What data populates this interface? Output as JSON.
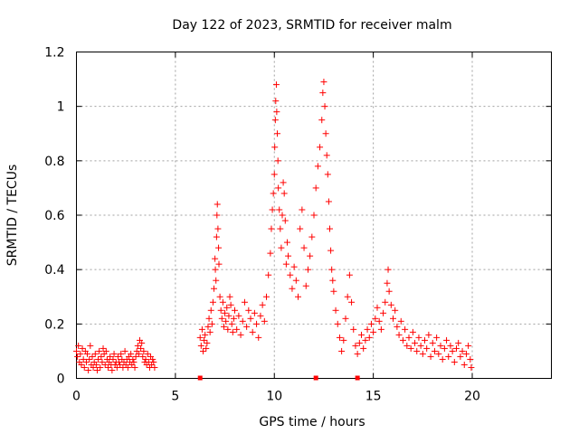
{
  "chart_data": {
    "type": "scatter",
    "title": "Day 122 of 2023, SRMTID for receiver malm",
    "xlabel": "GPS time / hours",
    "ylabel": "SRMTID / TECUs",
    "xlim": [
      0,
      24
    ],
    "ylim": [
      0,
      1.2
    ],
    "xticks": [
      0,
      5,
      10,
      15,
      20
    ],
    "xtick_labels": [
      "0",
      "5",
      "10",
      "15",
      "20"
    ],
    "yticks": [
      0,
      0.2,
      0.4,
      0.6,
      0.8,
      1.0,
      1.2
    ],
    "ytick_labels": [
      "0",
      "0.2",
      "0.4",
      "0.6",
      "0.8",
      "1",
      "1.2"
    ],
    "grid": true,
    "marker": "+",
    "color": "#ff0000",
    "series": [
      {
        "name": "SRMTID",
        "points": [
          [
            0.0,
            0.1
          ],
          [
            0.05,
            0.08
          ],
          [
            0.1,
            0.12
          ],
          [
            0.15,
            0.06
          ],
          [
            0.2,
            0.09
          ],
          [
            0.25,
            0.05
          ],
          [
            0.3,
            0.11
          ],
          [
            0.35,
            0.07
          ],
          [
            0.4,
            0.04
          ],
          [
            0.45,
            0.1
          ],
          [
            0.5,
            0.06
          ],
          [
            0.55,
            0.09
          ],
          [
            0.6,
            0.03
          ],
          [
            0.65,
            0.07
          ],
          [
            0.7,
            0.12
          ],
          [
            0.75,
            0.05
          ],
          [
            0.8,
            0.08
          ],
          [
            0.85,
            0.04
          ],
          [
            0.9,
            0.06
          ],
          [
            0.95,
            0.09
          ],
          [
            1.0,
            0.05
          ],
          [
            1.05,
            0.03
          ],
          [
            1.1,
            0.07
          ],
          [
            1.15,
            0.1
          ],
          [
            1.2,
            0.04
          ],
          [
            1.25,
            0.08
          ],
          [
            1.3,
            0.06
          ],
          [
            1.35,
            0.11
          ],
          [
            1.4,
            0.09
          ],
          [
            1.45,
            0.05
          ],
          [
            1.5,
            0.1
          ],
          [
            1.55,
            0.07
          ],
          [
            1.6,
            0.04
          ],
          [
            1.65,
            0.06
          ],
          [
            1.7,
            0.08
          ],
          [
            1.75,
            0.05
          ],
          [
            1.8,
            0.03
          ],
          [
            1.85,
            0.07
          ],
          [
            1.9,
            0.09
          ],
          [
            1.95,
            0.05
          ],
          [
            2.0,
            0.06
          ],
          [
            2.05,
            0.04
          ],
          [
            2.1,
            0.08
          ],
          [
            2.15,
            0.06
          ],
          [
            2.2,
            0.05
          ],
          [
            2.25,
            0.09
          ],
          [
            2.3,
            0.07
          ],
          [
            2.35,
            0.04
          ],
          [
            2.4,
            0.06
          ],
          [
            2.45,
            0.1
          ],
          [
            2.5,
            0.05
          ],
          [
            2.55,
            0.07
          ],
          [
            2.6,
            0.04
          ],
          [
            2.65,
            0.08
          ],
          [
            2.7,
            0.06
          ],
          [
            2.75,
            0.09
          ],
          [
            2.8,
            0.05
          ],
          [
            2.85,
            0.07
          ],
          [
            2.9,
            0.06
          ],
          [
            2.95,
            0.04
          ],
          [
            3.0,
            0.08
          ],
          [
            3.05,
            0.1
          ],
          [
            3.1,
            0.12
          ],
          [
            3.15,
            0.09
          ],
          [
            3.2,
            0.14
          ],
          [
            3.25,
            0.11
          ],
          [
            3.3,
            0.13
          ],
          [
            3.35,
            0.08
          ],
          [
            3.4,
            0.1
          ],
          [
            3.45,
            0.06
          ],
          [
            3.5,
            0.07
          ],
          [
            3.55,
            0.05
          ],
          [
            3.6,
            0.09
          ],
          [
            3.65,
            0.06
          ],
          [
            3.7,
            0.04
          ],
          [
            3.75,
            0.08
          ],
          [
            3.8,
            0.05
          ],
          [
            3.85,
            0.07
          ],
          [
            3.9,
            0.06
          ],
          [
            3.95,
            0.04
          ],
          [
            6.25,
            0.15
          ],
          [
            6.3,
            0.12
          ],
          [
            6.35,
            0.18
          ],
          [
            6.4,
            0.1
          ],
          [
            6.45,
            0.14
          ],
          [
            6.5,
            0.16
          ],
          [
            6.55,
            0.11
          ],
          [
            6.6,
            0.13
          ],
          [
            6.65,
            0.19
          ],
          [
            6.7,
            0.22
          ],
          [
            6.75,
            0.17
          ],
          [
            6.8,
            0.25
          ],
          [
            6.85,
            0.2
          ],
          [
            6.9,
            0.28
          ],
          [
            6.95,
            0.33
          ],
          [
            7.0,
            0.44
          ],
          [
            7.02,
            0.4
          ],
          [
            7.05,
            0.36
          ],
          [
            7.08,
            0.52
          ],
          [
            7.1,
            0.6
          ],
          [
            7.12,
            0.64
          ],
          [
            7.15,
            0.55
          ],
          [
            7.18,
            0.48
          ],
          [
            7.2,
            0.42
          ],
          [
            7.25,
            0.3
          ],
          [
            7.3,
            0.25
          ],
          [
            7.35,
            0.22
          ],
          [
            7.4,
            0.28
          ],
          [
            7.45,
            0.19
          ],
          [
            7.5,
            0.24
          ],
          [
            7.55,
            0.21
          ],
          [
            7.6,
            0.26
          ],
          [
            7.65,
            0.18
          ],
          [
            7.7,
            0.23
          ],
          [
            7.75,
            0.3
          ],
          [
            7.8,
            0.27
          ],
          [
            7.85,
            0.2
          ],
          [
            7.9,
            0.17
          ],
          [
            7.95,
            0.22
          ],
          [
            8.0,
            0.25
          ],
          [
            8.1,
            0.18
          ],
          [
            8.2,
            0.23
          ],
          [
            8.3,
            0.16
          ],
          [
            8.4,
            0.21
          ],
          [
            8.5,
            0.28
          ],
          [
            8.6,
            0.19
          ],
          [
            8.7,
            0.25
          ],
          [
            8.8,
            0.22
          ],
          [
            8.9,
            0.17
          ],
          [
            9.0,
            0.24
          ],
          [
            9.1,
            0.2
          ],
          [
            9.2,
            0.15
          ],
          [
            9.3,
            0.23
          ],
          [
            9.4,
            0.27
          ],
          [
            9.5,
            0.21
          ],
          [
            9.6,
            0.3
          ],
          [
            9.7,
            0.38
          ],
          [
            9.8,
            0.46
          ],
          [
            9.85,
            0.55
          ],
          [
            9.9,
            0.62
          ],
          [
            9.95,
            0.68
          ],
          [
            10.0,
            0.75
          ],
          [
            10.02,
            0.85
          ],
          [
            10.05,
            0.95
          ],
          [
            10.07,
            1.02
          ],
          [
            10.1,
            1.08
          ],
          [
            10.12,
            0.98
          ],
          [
            10.15,
            0.9
          ],
          [
            10.18,
            0.8
          ],
          [
            10.2,
            0.7
          ],
          [
            10.25,
            0.62
          ],
          [
            10.3,
            0.55
          ],
          [
            10.35,
            0.48
          ],
          [
            10.4,
            0.6
          ],
          [
            10.45,
            0.72
          ],
          [
            10.5,
            0.68
          ],
          [
            10.55,
            0.58
          ],
          [
            10.6,
            0.42
          ],
          [
            10.65,
            0.5
          ],
          [
            10.7,
            0.45
          ],
          [
            10.8,
            0.38
          ],
          [
            10.9,
            0.33
          ],
          [
            11.0,
            0.41
          ],
          [
            11.1,
            0.36
          ],
          [
            11.2,
            0.3
          ],
          [
            11.3,
            0.55
          ],
          [
            11.4,
            0.62
          ],
          [
            11.5,
            0.48
          ],
          [
            11.6,
            0.34
          ],
          [
            11.7,
            0.4
          ],
          [
            11.8,
            0.45
          ],
          [
            11.9,
            0.52
          ],
          [
            12.0,
            0.6
          ],
          [
            12.1,
            0.7
          ],
          [
            12.2,
            0.78
          ],
          [
            12.3,
            0.85
          ],
          [
            12.4,
            0.95
          ],
          [
            12.45,
            1.05
          ],
          [
            12.5,
            1.09
          ],
          [
            12.55,
            1.0
          ],
          [
            12.6,
            0.9
          ],
          [
            12.65,
            0.82
          ],
          [
            12.7,
            0.75
          ],
          [
            12.75,
            0.65
          ],
          [
            12.8,
            0.55
          ],
          [
            12.85,
            0.47
          ],
          [
            12.9,
            0.4
          ],
          [
            12.95,
            0.36
          ],
          [
            13.0,
            0.32
          ],
          [
            13.1,
            0.25
          ],
          [
            13.2,
            0.2
          ],
          [
            13.3,
            0.15
          ],
          [
            13.4,
            0.1
          ],
          [
            13.5,
            0.14
          ],
          [
            13.6,
            0.22
          ],
          [
            13.7,
            0.3
          ],
          [
            13.8,
            0.38
          ],
          [
            13.9,
            0.28
          ],
          [
            14.0,
            0.18
          ],
          [
            14.1,
            0.12
          ],
          [
            14.2,
            0.09
          ],
          [
            14.3,
            0.13
          ],
          [
            14.4,
            0.16
          ],
          [
            14.5,
            0.11
          ],
          [
            14.6,
            0.14
          ],
          [
            14.7,
            0.18
          ],
          [
            14.8,
            0.15
          ],
          [
            14.9,
            0.2
          ],
          [
            15.0,
            0.17
          ],
          [
            15.1,
            0.22
          ],
          [
            15.2,
            0.26
          ],
          [
            15.3,
            0.21
          ],
          [
            15.4,
            0.18
          ],
          [
            15.5,
            0.24
          ],
          [
            15.6,
            0.28
          ],
          [
            15.7,
            0.35
          ],
          [
            15.75,
            0.4
          ],
          [
            15.8,
            0.32
          ],
          [
            15.9,
            0.27
          ],
          [
            16.0,
            0.22
          ],
          [
            16.1,
            0.25
          ],
          [
            16.2,
            0.19
          ],
          [
            16.3,
            0.16
          ],
          [
            16.4,
            0.21
          ],
          [
            16.5,
            0.14
          ],
          [
            16.6,
            0.18
          ],
          [
            16.7,
            0.12
          ],
          [
            16.8,
            0.15
          ],
          [
            16.9,
            0.11
          ],
          [
            17.0,
            0.17
          ],
          [
            17.1,
            0.13
          ],
          [
            17.2,
            0.1
          ],
          [
            17.3,
            0.15
          ],
          [
            17.4,
            0.12
          ],
          [
            17.5,
            0.09
          ],
          [
            17.6,
            0.14
          ],
          [
            17.7,
            0.11
          ],
          [
            17.8,
            0.16
          ],
          [
            17.9,
            0.08
          ],
          [
            18.0,
            0.13
          ],
          [
            18.1,
            0.1
          ],
          [
            18.2,
            0.15
          ],
          [
            18.3,
            0.09
          ],
          [
            18.4,
            0.12
          ],
          [
            18.5,
            0.07
          ],
          [
            18.6,
            0.11
          ],
          [
            18.7,
            0.14
          ],
          [
            18.8,
            0.08
          ],
          [
            18.9,
            0.12
          ],
          [
            19.0,
            0.1
          ],
          [
            19.1,
            0.06
          ],
          [
            19.2,
            0.11
          ],
          [
            19.3,
            0.13
          ],
          [
            19.4,
            0.08
          ],
          [
            19.5,
            0.1
          ],
          [
            19.6,
            0.05
          ],
          [
            19.7,
            0.09
          ],
          [
            19.8,
            0.12
          ],
          [
            19.9,
            0.07
          ],
          [
            19.95,
            0.04
          ]
        ]
      }
    ],
    "axis_markers_x": [
      6.25,
      12.1,
      14.2
    ]
  }
}
